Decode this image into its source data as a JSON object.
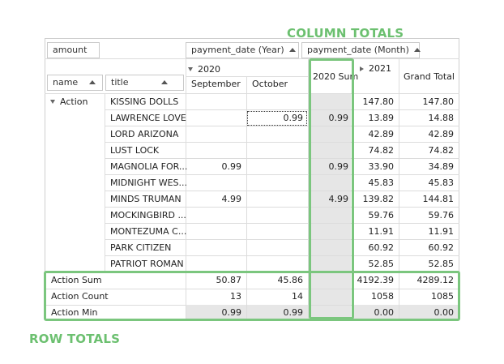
{
  "callouts": {
    "column_totals": "COLUMN TOTALS",
    "row_totals": "ROW TOTALS"
  },
  "fields": {
    "data_field": "amount",
    "column_field_year": "payment_date (Year)",
    "column_field_month": "payment_date (Month)",
    "row_field_name": "name",
    "row_field_title": "title"
  },
  "headers": {
    "year_2020": "2020",
    "month_september": "September",
    "month_october": "October",
    "sum_2020": "2020 Sum",
    "year_2021": "2021",
    "grand_total": "Grand Total"
  },
  "group_label": "Action",
  "rows": [
    {
      "title": "KISSING DOLLS",
      "sep": "",
      "oct": "",
      "sum2020": "",
      "y2021": "147.80",
      "total": "147.80"
    },
    {
      "title": "LAWRENCE LOVE",
      "sep": "",
      "oct": "0.99",
      "sum2020": "0.99",
      "y2021": "13.89",
      "total": "14.88"
    },
    {
      "title": "LORD ARIZONA",
      "sep": "",
      "oct": "",
      "sum2020": "",
      "y2021": "42.89",
      "total": "42.89"
    },
    {
      "title": "LUST LOCK",
      "sep": "",
      "oct": "",
      "sum2020": "",
      "y2021": "74.82",
      "total": "74.82"
    },
    {
      "title": "MAGNOLIA FOR...",
      "sep": "0.99",
      "oct": "",
      "sum2020": "0.99",
      "y2021": "33.90",
      "total": "34.89"
    },
    {
      "title": "MIDNIGHT WES...",
      "sep": "",
      "oct": "",
      "sum2020": "",
      "y2021": "45.83",
      "total": "45.83"
    },
    {
      "title": "MINDS TRUMAN",
      "sep": "4.99",
      "oct": "",
      "sum2020": "4.99",
      "y2021": "139.82",
      "total": "144.81"
    },
    {
      "title": "MOCKINGBIRD ...",
      "sep": "",
      "oct": "",
      "sum2020": "",
      "y2021": "59.76",
      "total": "59.76"
    },
    {
      "title": "MONTEZUMA C...",
      "sep": "",
      "oct": "",
      "sum2020": "",
      "y2021": "11.91",
      "total": "11.91"
    },
    {
      "title": "PARK CITIZEN",
      "sep": "",
      "oct": "",
      "sum2020": "",
      "y2021": "60.92",
      "total": "60.92"
    },
    {
      "title": "PATRIOT ROMAN",
      "sep": "",
      "oct": "",
      "sum2020": "",
      "y2021": "52.85",
      "total": "52.85"
    }
  ],
  "totals": [
    {
      "label": "Action Sum",
      "sep": "50.87",
      "oct": "45.86",
      "sum2020": "",
      "y2021": "4192.39",
      "total": "4289.12"
    },
    {
      "label": "Action Count",
      "sep": "13",
      "oct": "14",
      "sum2020": "",
      "y2021": "1058",
      "total": "1085"
    },
    {
      "label": "Action Min",
      "sep": "0.99",
      "oct": "0.99",
      "sum2020": "",
      "y2021": "0.00",
      "total": "0.00"
    }
  ],
  "colors": {
    "callout_green": "#6cc070",
    "gray_cell": "#e6e6e6",
    "grid_line": "#dcdcdc"
  }
}
